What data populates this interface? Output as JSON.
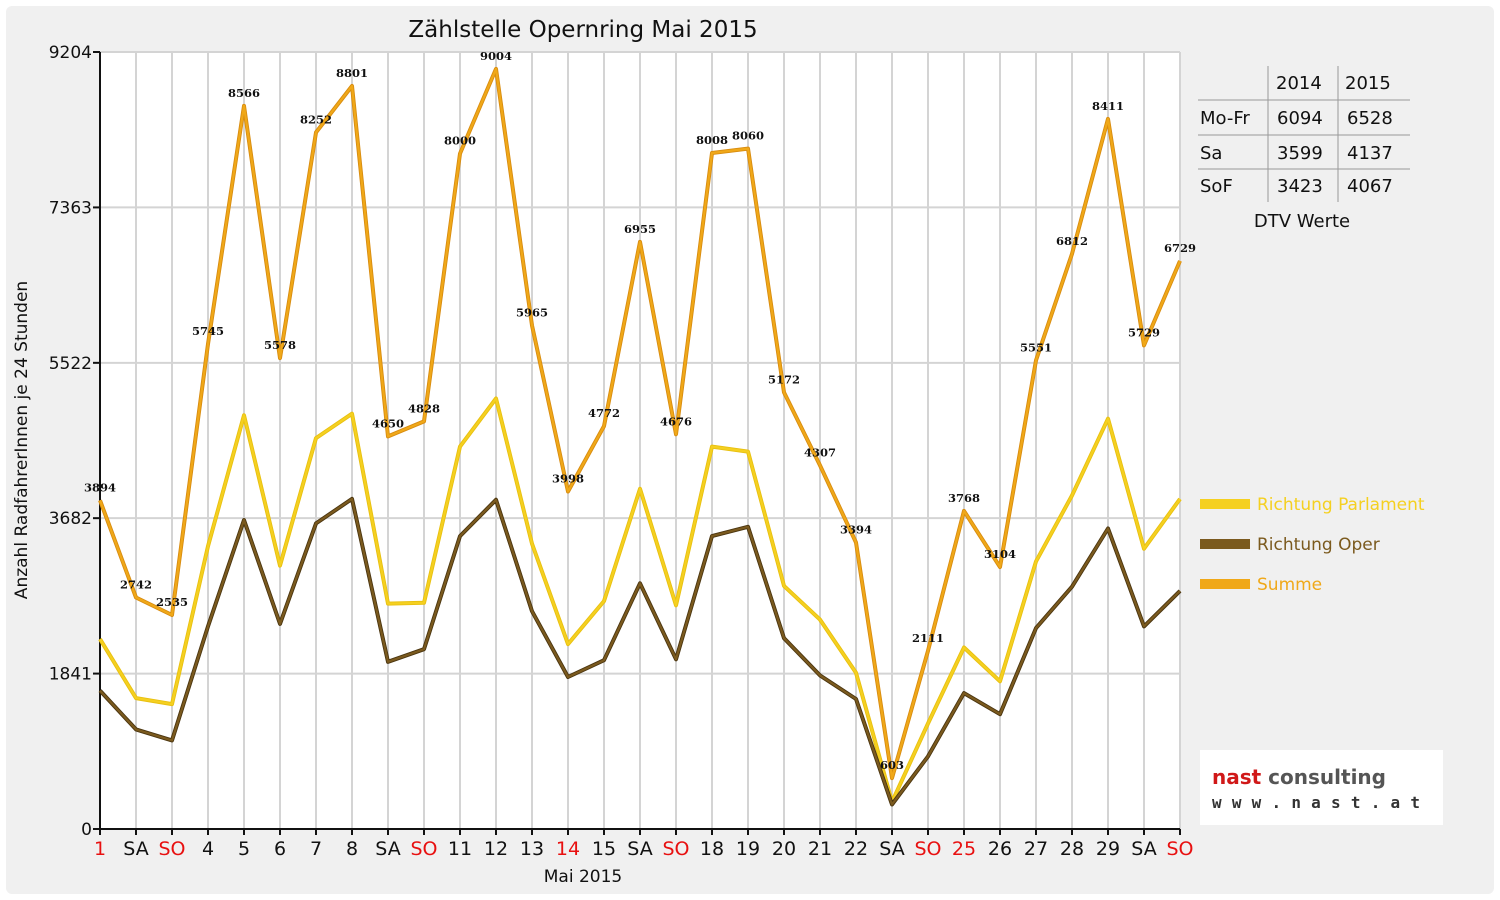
{
  "chart_data": {
    "type": "line",
    "title": "Zählstelle Opernring Mai 2015",
    "xlabel": "Mai 2015",
    "ylabel": "Anzahl RadfahrerInnen je 24 Stunden",
    "ylim": [
      0,
      9204
    ],
    "yticks": [
      0,
      1841,
      3682,
      5522,
      7363,
      9204
    ],
    "grid": true,
    "legend_position": "right",
    "categories": [
      "1",
      "SA",
      "SO",
      "4",
      "5",
      "6",
      "7",
      "8",
      "SA",
      "SO",
      "11",
      "12",
      "13",
      "14",
      "15",
      "SA",
      "SO",
      "18",
      "19",
      "20",
      "21",
      "22",
      "SA",
      "SO",
      "25",
      "26",
      "27",
      "28",
      "29",
      "SA",
      "SO"
    ],
    "holiday_indices": [
      0,
      2,
      9,
      13,
      16,
      23,
      24,
      30
    ],
    "series": [
      {
        "name": "Richtung Parlament",
        "color": "#f5d020",
        "values": [
          2250,
          1550,
          1480,
          3350,
          4900,
          3120,
          4630,
          4920,
          2670,
          2680,
          4530,
          5100,
          3380,
          2190,
          2700,
          4030,
          2650,
          4530,
          4470,
          2880,
          2480,
          1850,
          320,
          1250,
          2150,
          1750,
          3170,
          3950,
          4860,
          3320,
          3910
        ]
      },
      {
        "name": "Richtung Oper",
        "color": "#7b5a1e",
        "values": [
          1640,
          1180,
          1050,
          2400,
          3660,
          2430,
          3620,
          3910,
          1980,
          2130,
          3470,
          3900,
          2580,
          1800,
          2000,
          2910,
          2010,
          3470,
          3580,
          2260,
          1820,
          1540,
          290,
          860,
          1610,
          1360,
          2380,
          2870,
          3560,
          2400,
          2820
        ]
      },
      {
        "name": "Summe",
        "color": "#f0a818",
        "values": [
          3894,
          2742,
          2535,
          5745,
          8566,
          5578,
          8252,
          8801,
          4650,
          4828,
          8000,
          9004,
          5965,
          3998,
          4772,
          6955,
          4676,
          8008,
          8060,
          5172,
          4307,
          3394,
          603,
          2111,
          3768,
          3104,
          5551,
          6812,
          8411,
          5729,
          6729
        ]
      }
    ],
    "data_labels": [
      "3894",
      "2742",
      "2535",
      "5745",
      "8566",
      "5578",
      "8252",
      "8801",
      "4650",
      "4828",
      "8000",
      "9004",
      "5965",
      "3998",
      "4772",
      "6955",
      "4676",
      "8008",
      "8060",
      "5172",
      "4307",
      "3394",
      "603",
      "2111",
      "3768",
      "3104",
      "5551",
      "6812",
      "8411",
      "5729",
      "6729"
    ]
  },
  "dtv_table": {
    "headers": [
      "",
      "2014",
      "2015"
    ],
    "rows": [
      {
        "label": "Mo-Fr",
        "v2014": "6094",
        "v2015": "6528"
      },
      {
        "label": "Sa",
        "v2014": "3599",
        "v2015": "4137"
      },
      {
        "label": "SoF",
        "v2014": "3423",
        "v2015": "4067"
      }
    ],
    "caption": "DTV Werte"
  },
  "logo": {
    "word1": "nast",
    "word2": "consulting",
    "url": "www.nast.at"
  },
  "colors": {
    "holiday": "#e81010",
    "normal": "#111111"
  }
}
